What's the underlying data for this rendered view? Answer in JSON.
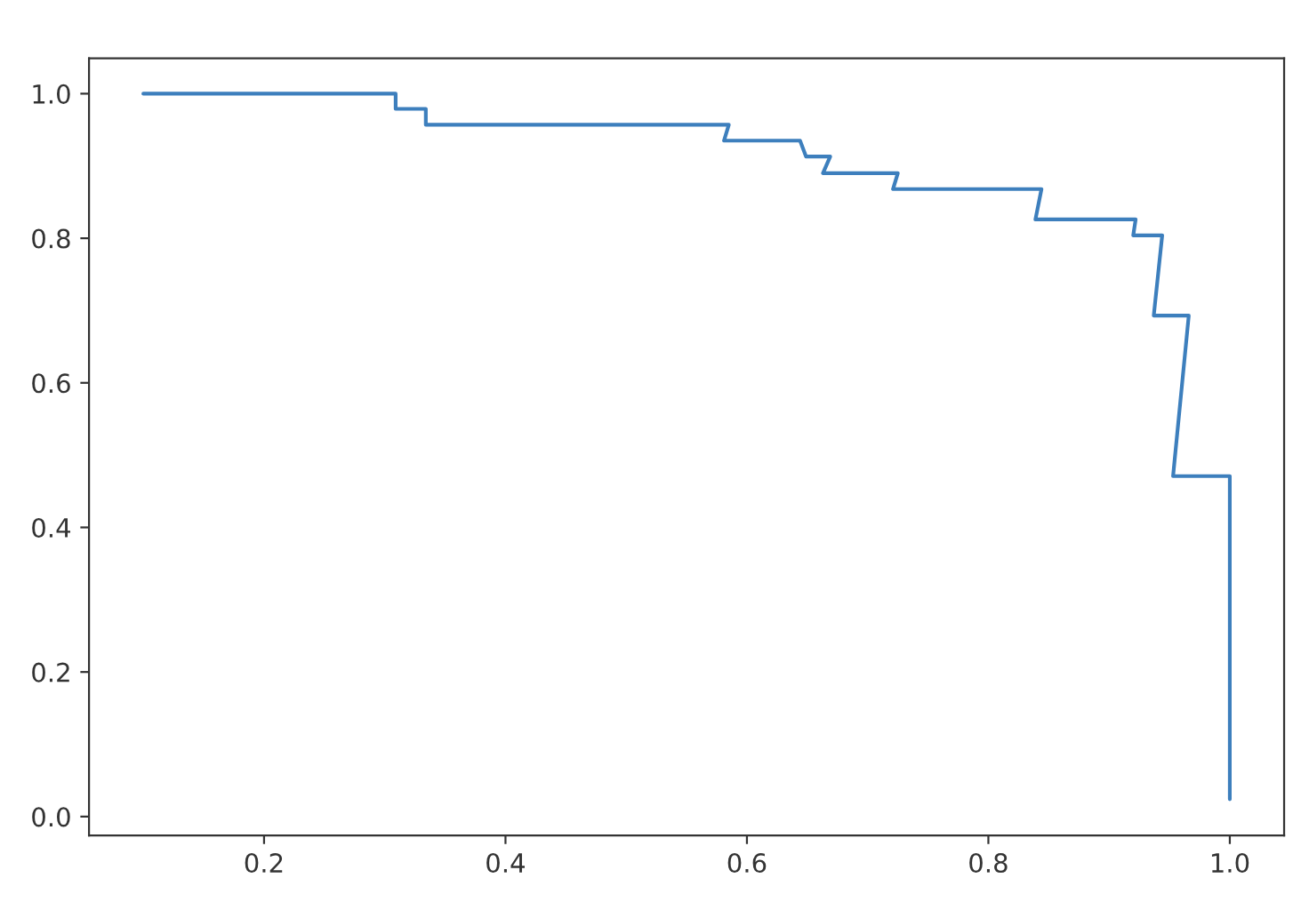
{
  "chart_data": {
    "type": "line",
    "x": [
      0.1,
      0.309,
      0.309,
      0.334,
      0.334,
      0.585,
      0.581,
      0.644,
      0.649,
      0.669,
      0.663,
      0.725,
      0.721,
      0.844,
      0.839,
      0.922,
      0.92,
      0.944,
      0.937,
      0.966,
      0.953,
      1.0,
      1.0
    ],
    "series": [
      {
        "color": "#3d7fbd",
        "values": [
          1.0,
          1.0,
          0.979,
          0.979,
          0.957,
          0.957,
          0.935,
          0.935,
          0.913,
          0.913,
          0.89,
          0.89,
          0.868,
          0.868,
          0.826,
          0.826,
          0.804,
          0.804,
          0.693,
          0.693,
          0.471,
          0.471,
          0.024
        ]
      }
    ],
    "xlim": [
      0.055,
      1.045
    ],
    "ylim": [
      -0.026,
      1.049
    ],
    "xticks": [
      0.2,
      0.4,
      0.6,
      0.8,
      {
        "value": 1.0,
        "label": "1.0"
      }
    ],
    "yticks": [
      {
        "value": 0,
        "label": "0.0"
      },
      0.2,
      0.4,
      0.6,
      0.8,
      {
        "value": 1.0,
        "label": "1.0"
      }
    ],
    "grid": false,
    "legend": false,
    "marker": "none",
    "line_style": "solid"
  }
}
